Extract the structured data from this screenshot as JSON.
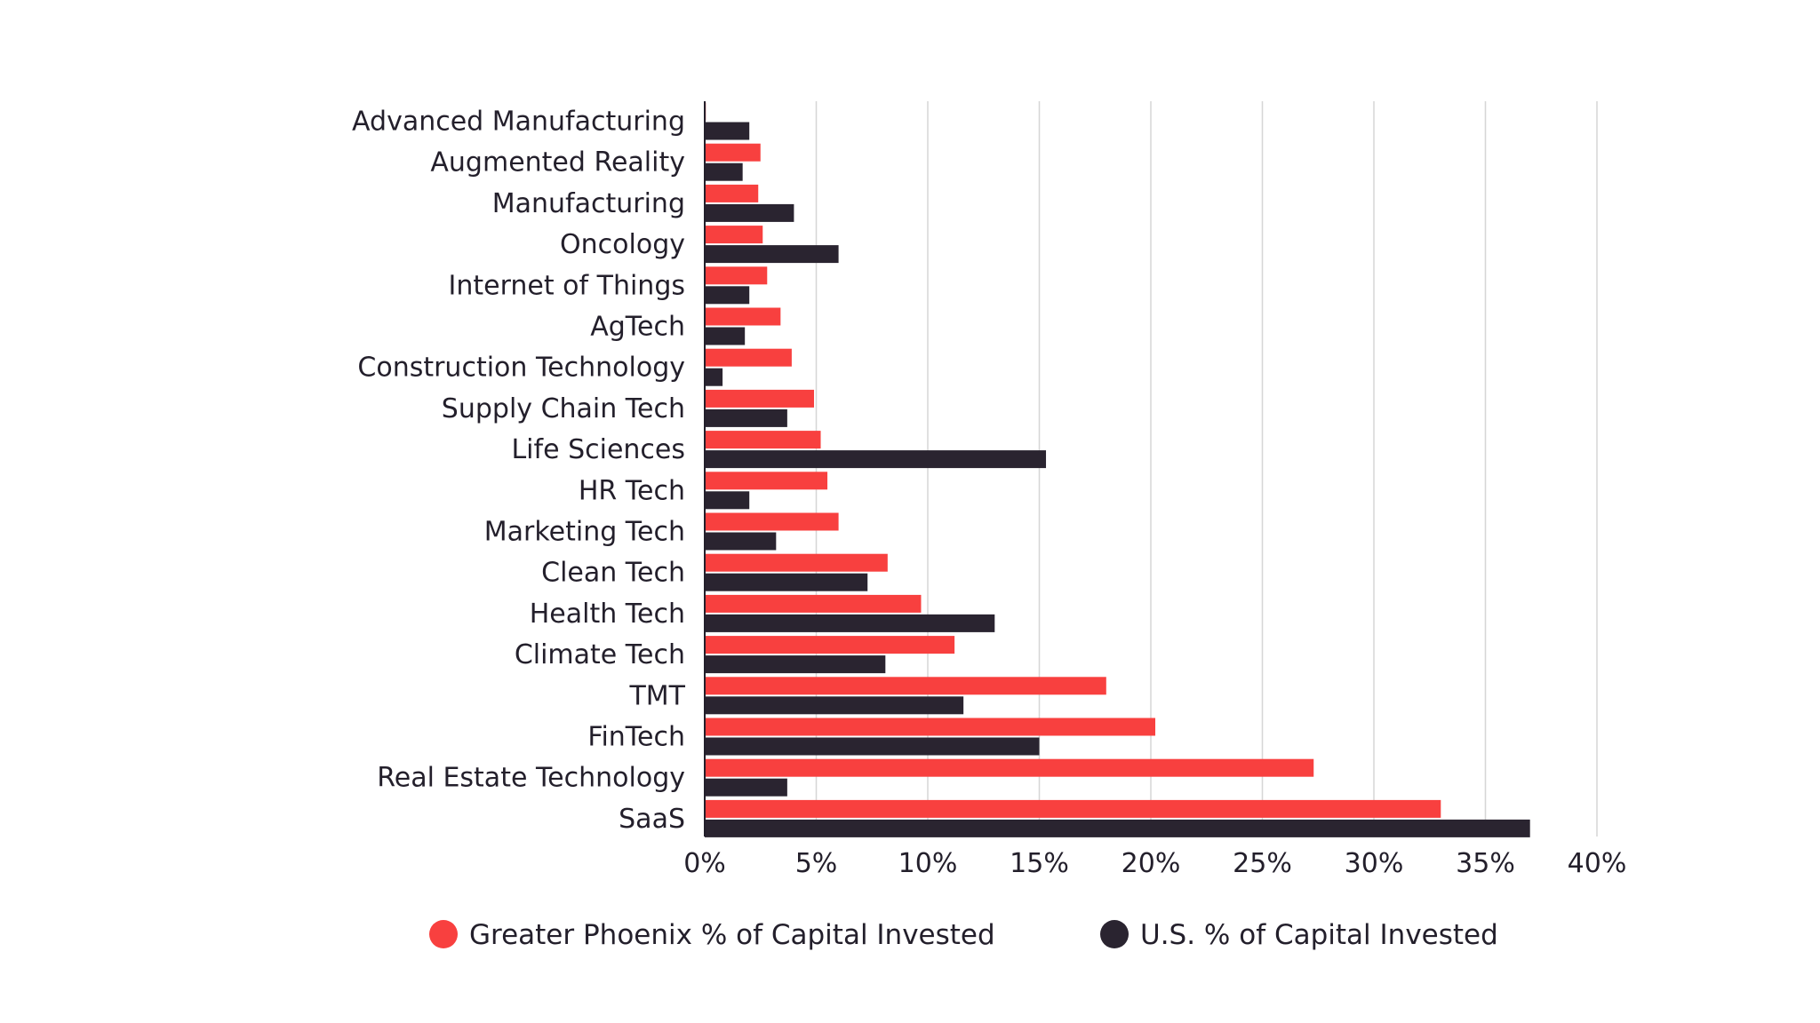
{
  "chart_data": {
    "type": "bar",
    "orientation": "horizontal",
    "categories": [
      "Advanced Manufacturing",
      "Augmented Reality",
      "Manufacturing",
      "Oncology",
      "Internet of Things",
      "AgTech",
      "Construction Technology",
      "Supply Chain Tech",
      "Life Sciences",
      "HR Tech",
      "Marketing Tech",
      "Clean Tech",
      "Health Tech",
      "Climate Tech",
      "TMT",
      "FinTech",
      "Real Estate Technology",
      "SaaS"
    ],
    "series": [
      {
        "name": "Greater Phoenix % of Capital Invested",
        "color": "#f8403f",
        "values": [
          0.05,
          2.5,
          2.4,
          2.6,
          2.8,
          3.4,
          3.9,
          4.9,
          5.2,
          5.5,
          6.0,
          8.2,
          9.7,
          11.2,
          18.0,
          20.2,
          27.3,
          33.0
        ]
      },
      {
        "name": "U.S. % of Capital Invested",
        "color": "#2a2430",
        "values": [
          2.0,
          1.7,
          4.0,
          6.0,
          2.0,
          1.8,
          0.8,
          3.7,
          15.3,
          2.0,
          3.2,
          7.3,
          13.0,
          8.1,
          11.6,
          15.0,
          3.7,
          37.0
        ]
      }
    ],
    "xlim": [
      0,
      40
    ],
    "xticks": [
      "0%",
      "5%",
      "10%",
      "15%",
      "20%",
      "25%",
      "30%",
      "35%",
      "40%"
    ],
    "grid": "vertical",
    "legend_position": "bottom",
    "title": "",
    "xlabel": "",
    "ylabel": ""
  },
  "colors": {
    "phoenix": "#f8403f",
    "us": "#2a2430",
    "grid": "#d6d6d6",
    "axis": "#231f2b"
  }
}
